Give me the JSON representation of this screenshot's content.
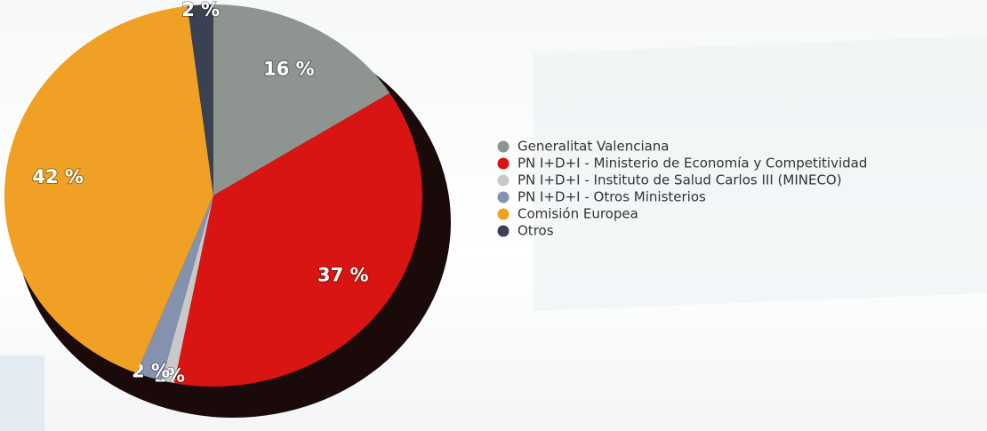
{
  "chart_data": {
    "type": "pie",
    "categories": [
      "Generalitat Valenciana",
      "PN I+D+I - Ministerio de Economía y Competitividad",
      "PN I+D+I - Instituto de Salud Carlos III (MINECO)",
      "PN I+D+I - Otros Ministerios",
      "Comisión Europea",
      "Otros"
    ],
    "values": [
      16,
      37,
      1,
      2,
      42,
      2
    ],
    "value_labels": [
      "16 %",
      "37 %",
      "1%",
      "2 %",
      "42 %",
      "2 %"
    ],
    "colors": [
      "#8e9591",
      "#d81512",
      "#c9c9c9",
      "#8492b0",
      "#f0a024",
      "#3a4152"
    ],
    "legend": "right"
  }
}
